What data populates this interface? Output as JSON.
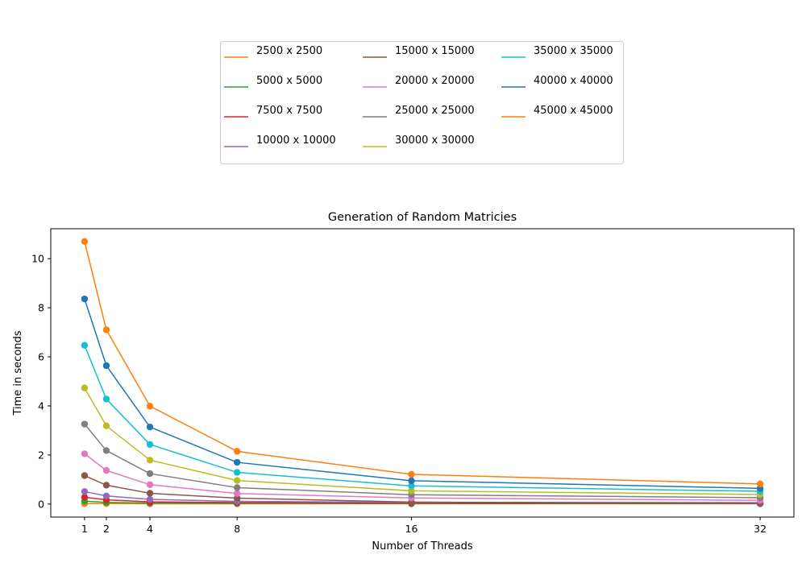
{
  "chart_data": {
    "type": "line",
    "title": "Generation of Random Matricies",
    "xlabel": "Number of Threads",
    "ylabel": "Time in seconds",
    "x": [
      1,
      2,
      4,
      8,
      16,
      32
    ],
    "xticks": [
      1,
      2,
      4,
      8,
      16,
      32
    ],
    "yticks": [
      0,
      2,
      4,
      6,
      8,
      10
    ],
    "xlim": [
      -0.55,
      33.55
    ],
    "ylim": [
      -0.53,
      11.22
    ],
    "grid": false,
    "legend_position": "top-center (outside plot)",
    "series": [
      {
        "name": "2500 x 2500",
        "color": "#ff7f0e",
        "values": [
          0.02,
          0.02,
          0.01,
          0.01,
          0.01,
          0.01
        ]
      },
      {
        "name": "5000 x 5000",
        "color": "#2ca02c",
        "values": [
          0.12,
          0.07,
          0.04,
          0.03,
          0.02,
          0.02
        ]
      },
      {
        "name": "7500 x 7500",
        "color": "#d62728",
        "values": [
          0.28,
          0.17,
          0.09,
          0.06,
          0.04,
          0.04
        ]
      },
      {
        "name": "10000 x 10000",
        "color": "#9467bd",
        "values": [
          0.51,
          0.33,
          0.19,
          0.11,
          0.07,
          0.06
        ]
      },
      {
        "name": "15000 x 15000",
        "color": "#8c564b",
        "values": [
          1.16,
          0.77,
          0.44,
          0.24,
          0.08,
          0.02
        ]
      },
      {
        "name": "20000 x 20000",
        "color": "#e377c2",
        "values": [
          2.05,
          1.37,
          0.79,
          0.43,
          0.25,
          0.15
        ]
      },
      {
        "name": "25000 x 25000",
        "color": "#7f7f7f",
        "values": [
          3.26,
          2.18,
          1.24,
          0.67,
          0.38,
          0.26
        ]
      },
      {
        "name": "30000 x 30000",
        "color": "#bcbd22",
        "values": [
          4.73,
          3.19,
          1.79,
          0.96,
          0.54,
          0.39
        ]
      },
      {
        "name": "35000 x 35000",
        "color": "#17becf",
        "values": [
          6.47,
          4.28,
          2.43,
          1.29,
          0.74,
          0.52
        ]
      },
      {
        "name": "40000 x 40000",
        "color": "#1f77b4",
        "values": [
          8.36,
          5.64,
          3.14,
          1.7,
          0.95,
          0.64
        ]
      },
      {
        "name": "45000 x 45000",
        "color": "#ff7f0e",
        "values": [
          10.7,
          7.1,
          3.99,
          2.15,
          1.21,
          0.82
        ]
      }
    ]
  }
}
